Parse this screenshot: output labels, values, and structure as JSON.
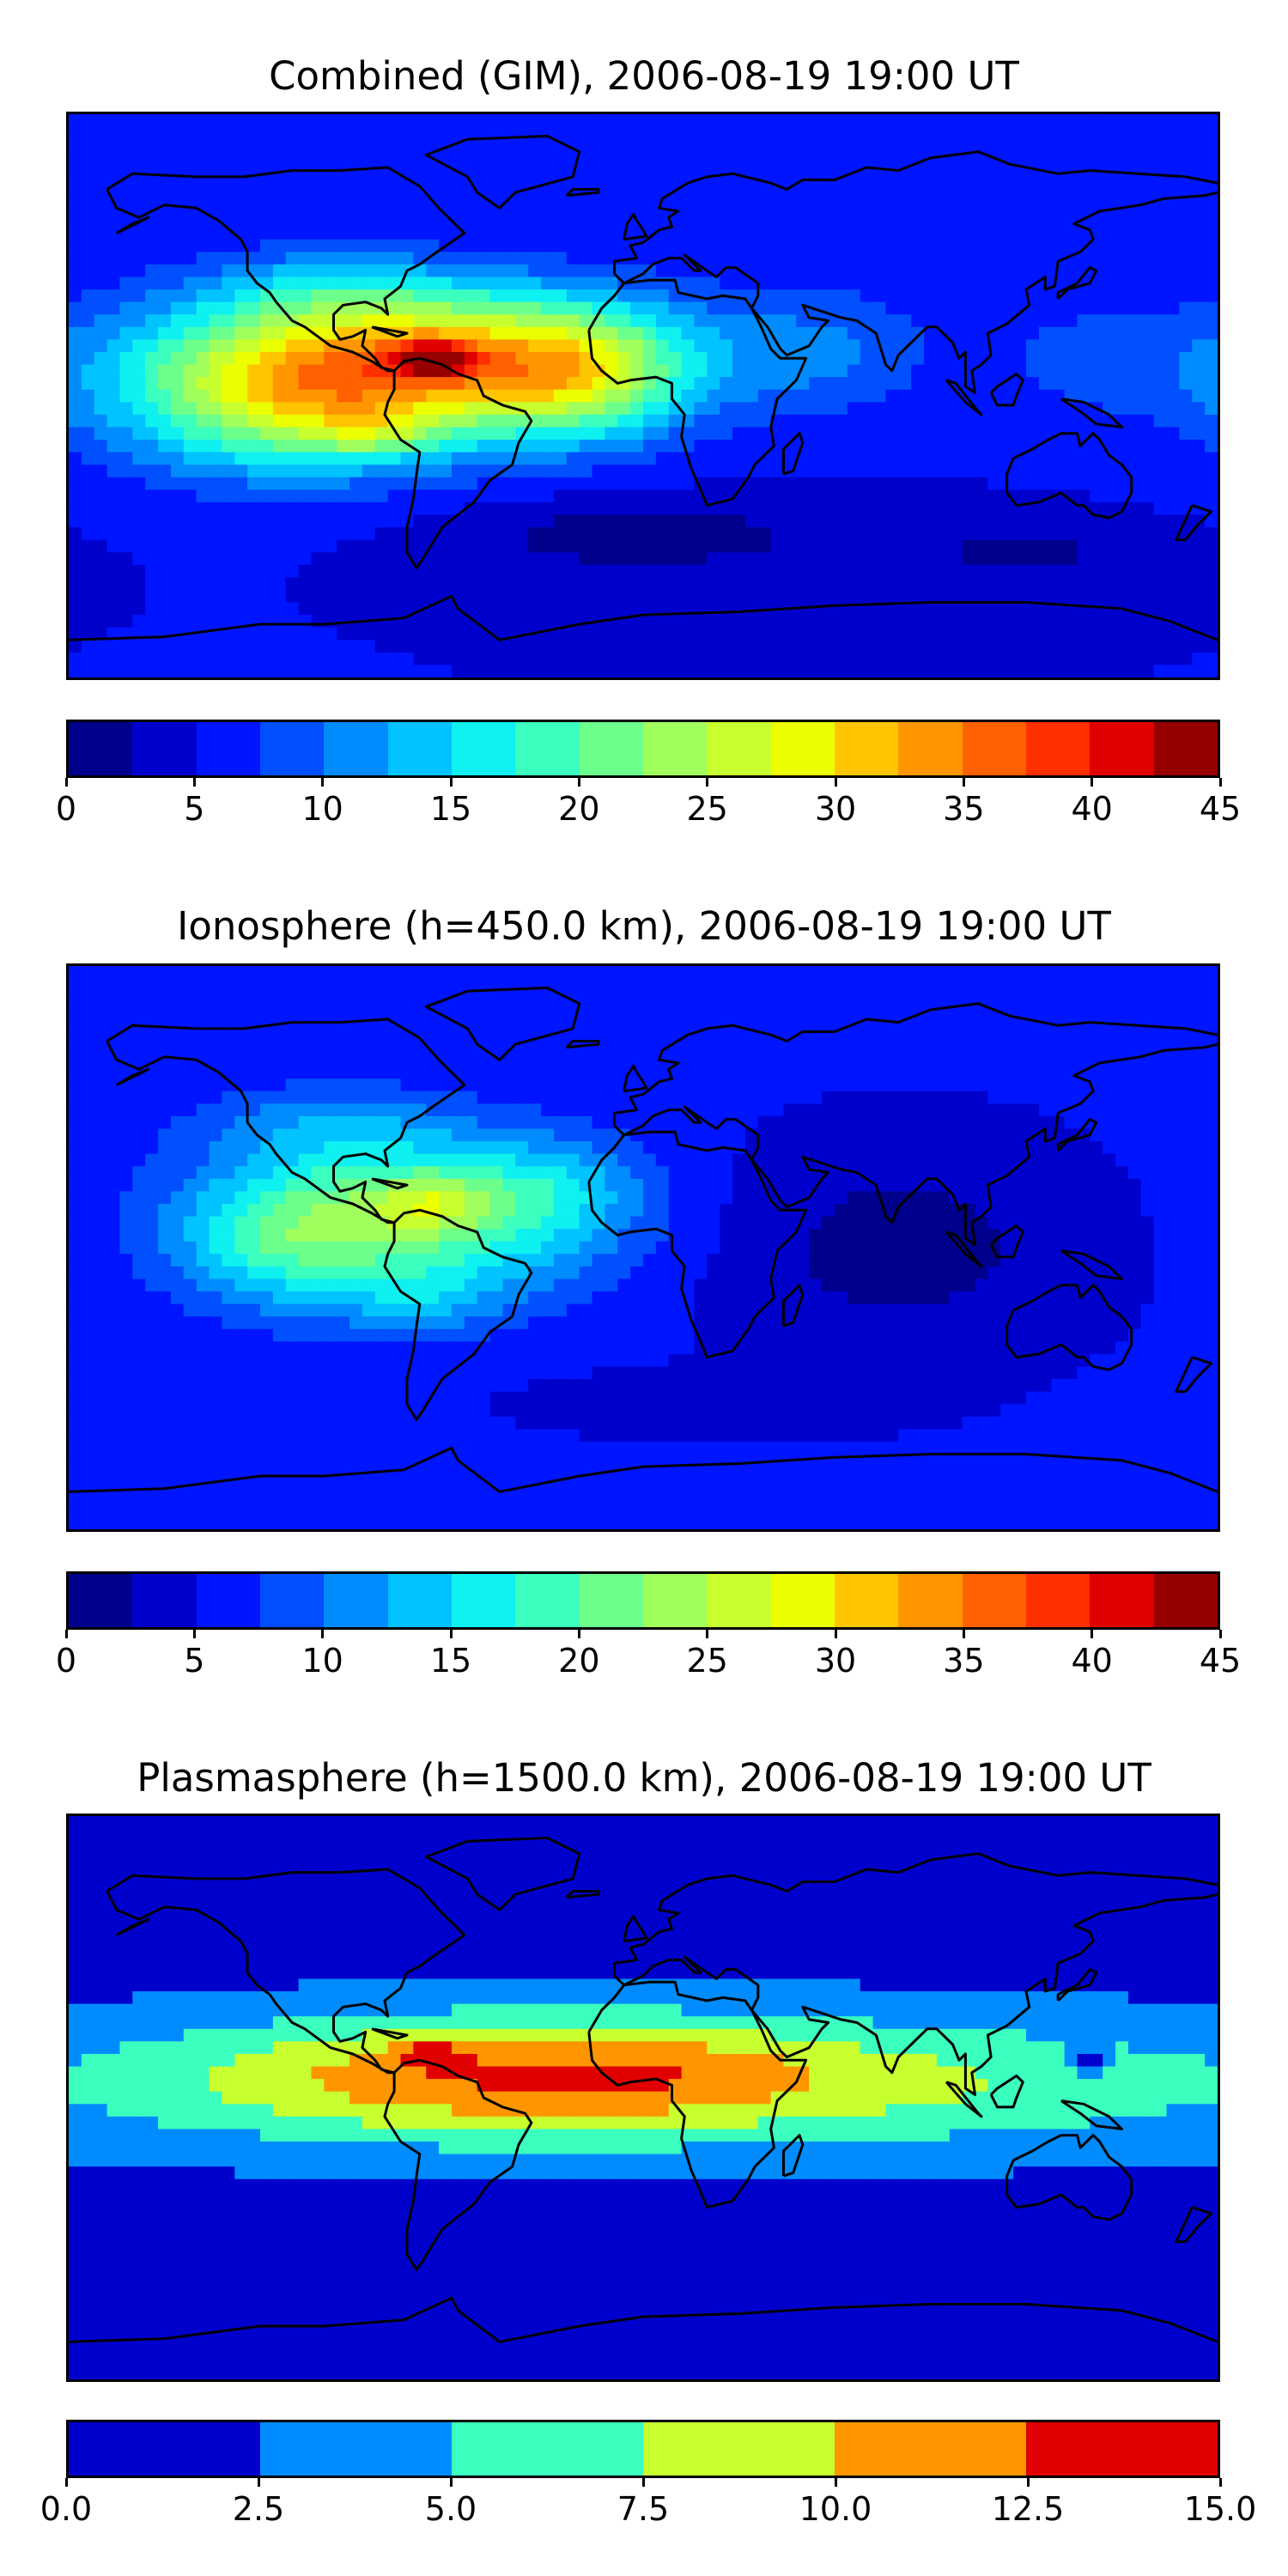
{
  "chart_data": [
    {
      "type": "heatmap",
      "title": "Combined (GIM), 2006-08-19 19:00 UT",
      "colorbar": {
        "levels": [
          0,
          2.5,
          5,
          7.5,
          10,
          12.5,
          15,
          17.5,
          20,
          22.5,
          25,
          27.5,
          30,
          32.5,
          35,
          37.5,
          40,
          42.5,
          45
        ],
        "tick_labels": [
          "0",
          "5",
          "10",
          "15",
          "20",
          "25",
          "30",
          "35",
          "40",
          "45"
        ],
        "colors": [
          "#00008c",
          "#0000cd",
          "#0015ff",
          "#0050ff",
          "#008cff",
          "#00c3ff",
          "#0ff0f0",
          "#3bffbf",
          "#6cff8c",
          "#a0ff5c",
          "#c8ff2e",
          "#ecff00",
          "#ffc500",
          "#ff9600",
          "#ff6000",
          "#ff2f00",
          "#e00000",
          "#960000"
        ]
      },
      "field": {
        "background": 5,
        "blobs": [
          {
            "lon": -70,
            "lat": 12,
            "lonw": 80,
            "latw": 22,
            "amp": 26
          },
          {
            "lon": -110,
            "lat": -5,
            "lonw": 55,
            "latw": 22,
            "amp": 14
          },
          {
            "lon": -20,
            "lat": 5,
            "lonw": 30,
            "latw": 20,
            "amp": 10
          },
          {
            "lon": -65,
            "lat": 12,
            "lonw": 12,
            "latw": 6,
            "amp": 12
          },
          {
            "lon": -85,
            "lat": -12,
            "lonw": 20,
            "latw": 7,
            "amp": 5
          },
          {
            "lon": 60,
            "lat": 15,
            "lonw": 30,
            "latw": 20,
            "amp": 4
          },
          {
            "lon": 140,
            "lat": 12,
            "lonw": 35,
            "latw": 20,
            "amp": 3
          },
          {
            "lon": -100,
            "lat": 35,
            "lonw": 40,
            "latw": 12,
            "amp": 5
          },
          {
            "lon": 0,
            "lat": -45,
            "lonw": 60,
            "latw": 12,
            "amp": -4
          },
          {
            "lon": 120,
            "lat": -50,
            "lonw": 40,
            "latw": 10,
            "amp": -3
          }
        ]
      }
    },
    {
      "type": "heatmap",
      "title": "Ionosphere  (h=450.0 km), 2006-08-19 19:00 UT",
      "colorbar": {
        "levels": [
          0,
          2.5,
          5,
          7.5,
          10,
          12.5,
          15,
          17.5,
          20,
          22.5,
          25,
          27.5,
          30,
          32.5,
          35,
          37.5,
          40,
          42.5,
          45
        ],
        "tick_labels": [
          "0",
          "5",
          "10",
          "15",
          "20",
          "25",
          "30",
          "35",
          "40",
          "45"
        ],
        "colors": [
          "#00008c",
          "#0000cd",
          "#0015ff",
          "#0050ff",
          "#008cff",
          "#00c3ff",
          "#0ff0f0",
          "#3bffbf",
          "#6cff8c",
          "#a0ff5c",
          "#c8ff2e",
          "#ecff00",
          "#ffc500",
          "#ff9600",
          "#ff6000",
          "#ff2f00",
          "#e00000",
          "#960000"
        ]
      },
      "field": {
        "background": 5.5,
        "blobs": [
          {
            "lon": -75,
            "lat": 10,
            "lonw": 60,
            "latw": 25,
            "amp": 17
          },
          {
            "lon": -65,
            "lat": 15,
            "lonw": 18,
            "latw": 8,
            "amp": 6
          },
          {
            "lon": -115,
            "lat": 0,
            "lonw": 30,
            "latw": 20,
            "amp": 6
          },
          {
            "lon": -70,
            "lat": -18,
            "lonw": 25,
            "latw": 10,
            "amp": 4
          },
          {
            "lon": -25,
            "lat": 20,
            "lonw": 25,
            "latw": 15,
            "amp": 4
          },
          {
            "lon": 80,
            "lat": 0,
            "lonw": 60,
            "latw": 35,
            "amp": -4
          },
          {
            "lon": 20,
            "lat": -50,
            "lonw": 60,
            "latw": 10,
            "amp": -2
          },
          {
            "lon": -100,
            "lat": 40,
            "lonw": 40,
            "latw": 12,
            "amp": 4
          }
        ]
      }
    },
    {
      "type": "heatmap",
      "title": "Plasmasphere (h=1500.0 km), 2006-08-19 19:00 UT",
      "colorbar": {
        "levels": [
          0.0,
          2.5,
          5.0,
          7.5,
          10.0,
          12.5,
          15.0
        ],
        "tick_labels": [
          "0.0",
          "2.5",
          "5.0",
          "7.5",
          "10.0",
          "12.5",
          "15.0"
        ],
        "colors": [
          "#0000cd",
          "#008cff",
          "#3bffbf",
          "#c8ff2e",
          "#ff9600",
          "#e00000"
        ]
      },
      "field": {
        "background": 1.5,
        "blobs": [
          {
            "lon": 0,
            "lat": 5,
            "lonw": 200,
            "latw": 22,
            "amp": 8
          },
          {
            "lon": -60,
            "lat": 8,
            "lonw": 70,
            "latw": 18,
            "amp": 3.5
          },
          {
            "lon": 10,
            "lat": 10,
            "lonw": 45,
            "latw": 15,
            "amp": 2
          },
          {
            "lon": -66,
            "lat": 14,
            "lonw": 10,
            "latw": 4,
            "amp": 4
          },
          {
            "lon": 140,
            "lat": 12,
            "lonw": 5,
            "latw": 5,
            "amp": -5
          }
        ]
      }
    }
  ]
}
